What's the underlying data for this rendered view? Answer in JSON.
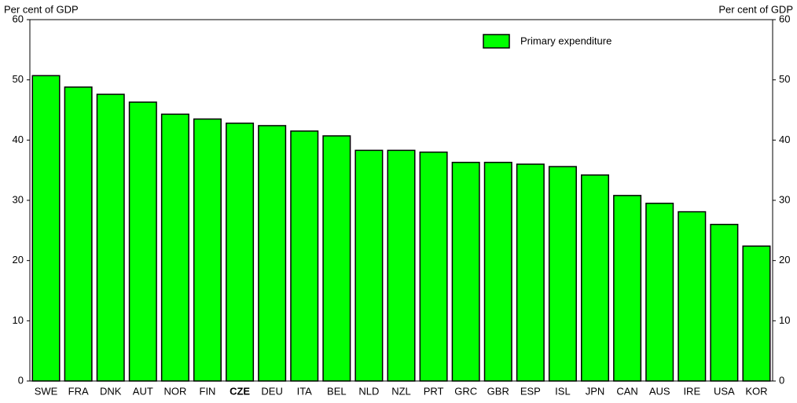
{
  "chart_data": {
    "type": "bar",
    "y_label": "Per cent of GDP",
    "y2_label": "Per cent of GDP",
    "categories": [
      "SWE",
      "FRA",
      "DNK",
      "AUT",
      "NOR",
      "FIN",
      "CZE",
      "DEU",
      "ITA",
      "BEL",
      "NLD",
      "NZL",
      "PRT",
      "GRC",
      "GBR",
      "ESP",
      "ISL",
      "JPN",
      "CAN",
      "AUS",
      "IRE",
      "USA",
      "KOR"
    ],
    "series": [
      {
        "name": "Primary expenditure",
        "color": "#00ff00",
        "values": [
          50.7,
          48.8,
          47.6,
          46.3,
          44.3,
          43.5,
          42.8,
          42.4,
          41.5,
          40.7,
          38.3,
          38.3,
          38.0,
          36.3,
          36.3,
          36.0,
          35.6,
          34.2,
          30.8,
          29.5,
          28.1,
          26.0,
          22.4
        ]
      }
    ],
    "highlight_category_index": 6,
    "ylim": [
      0,
      60
    ],
    "yticks": [
      0,
      10,
      20,
      30,
      40,
      50,
      60
    ],
    "y2lim": [
      0,
      60
    ],
    "y2ticks": [
      0,
      10,
      20,
      30,
      40,
      50,
      60
    ],
    "legend": "top-right"
  }
}
